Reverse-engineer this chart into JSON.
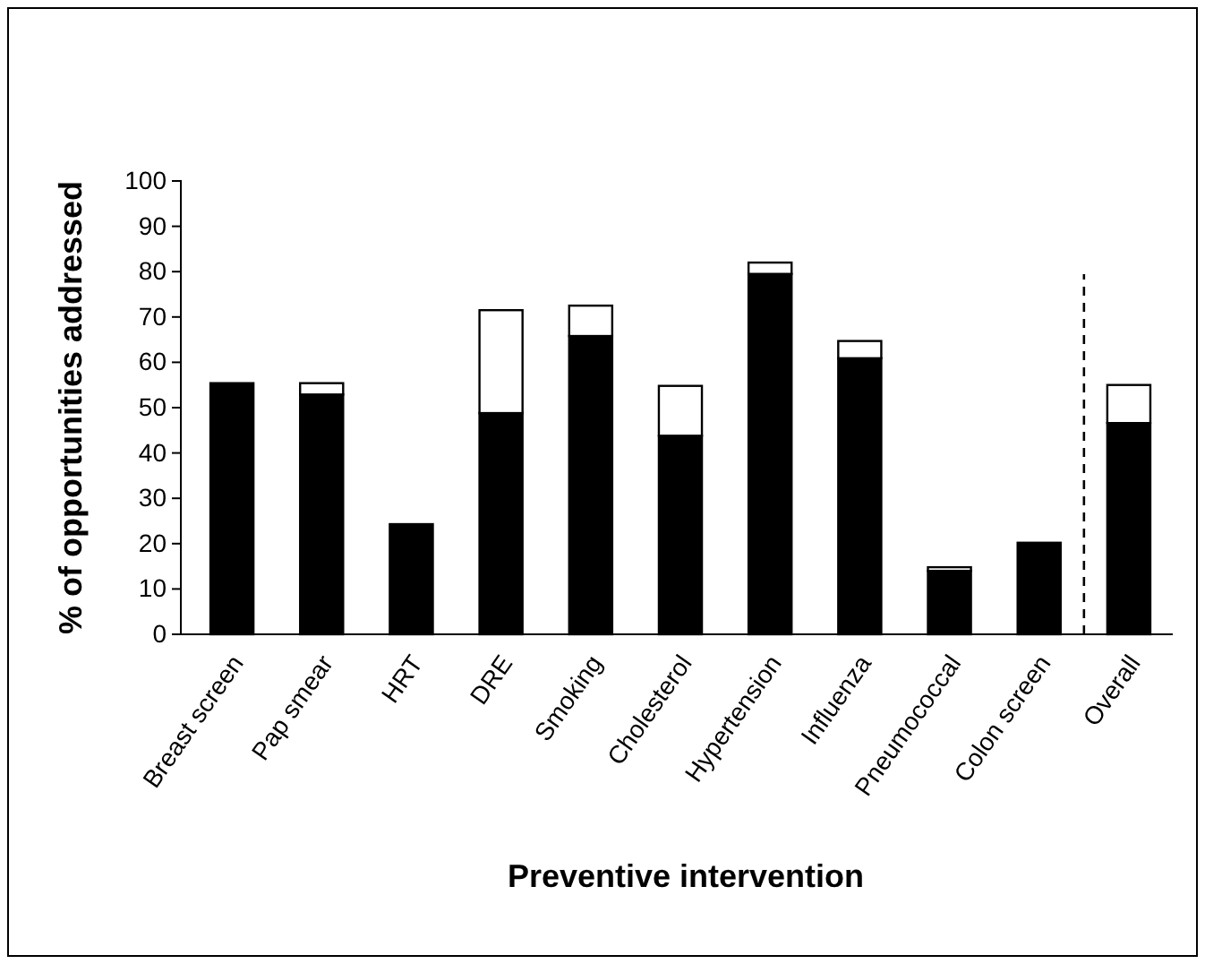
{
  "chart_data": {
    "type": "bar",
    "stacked": true,
    "xlabel": "Preventive intervention",
    "ylabel": "% of opportunities addressed",
    "categories": [
      "Breast screen",
      "Pap smear",
      "HRT",
      "DRE",
      "Smoking",
      "Cholesterol",
      "Hypertension",
      "Influenza",
      "Pneumococcal",
      "Colon screen",
      "Overall"
    ],
    "series": [
      {
        "color": "#000000",
        "values": [
          55.4,
          52.9,
          24.3,
          48.8,
          65.8,
          43.8,
          79.5,
          60.9,
          14,
          20.2,
          46.6
        ]
      },
      {
        "color": "#ffffff",
        "values": [
          null,
          2.5,
          null,
          22.7,
          6.7,
          11,
          2.5,
          3.8,
          0.8,
          null,
          8.4
        ]
      }
    ],
    "ylim": [
      0,
      100
    ],
    "yticks": [
      0,
      10,
      20,
      30,
      40,
      50,
      60,
      70,
      80,
      90,
      100
    ]
  }
}
